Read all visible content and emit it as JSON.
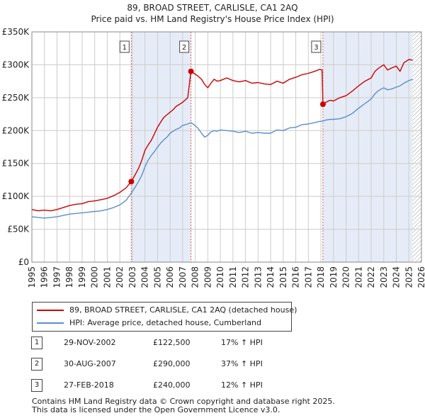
{
  "title_line1": "89, BROAD STREET, CARLISLE, CA1 2AQ",
  "title_line2": "Price paid vs. HM Land Registry's House Price Index (HPI)",
  "colors": {
    "property": "#cc0000",
    "hpi": "#5b8ecb",
    "shade": "#e6ecf7",
    "grid": "#cccccc",
    "vline": "#dd5555",
    "hatch": "#999999"
  },
  "legend": {
    "property_label": "89, BROAD STREET, CARLISLE, CA1 2AQ (detached house)",
    "hpi_label": "HPI: Average price, detached house, Cumberland"
  },
  "sales": [
    {
      "num": "1",
      "date": "29-NOV-2002",
      "price": "£122,500",
      "hpi": "17% ↑ HPI"
    },
    {
      "num": "2",
      "date": "30-AUG-2007",
      "price": "£290,000",
      "hpi": "37% ↑ HPI"
    },
    {
      "num": "3",
      "date": "27-FEB-2018",
      "price": "£240,000",
      "hpi": "12% ↑ HPI"
    }
  ],
  "footer_line1": "Contains HM Land Registry data © Crown copyright and database right 2025.",
  "footer_line2": "This data is licensed under the Open Government Licence v3.0.",
  "chart_data": {
    "type": "line",
    "title": "89, BROAD STREET, CARLISLE, CA1 2AQ",
    "subtitle": "Price paid vs. HM Land Registry's House Price Index (HPI)",
    "xlabel": "",
    "ylabel": "",
    "xlim": [
      1995,
      2026
    ],
    "ylim": [
      0,
      350000
    ],
    "yticks": [
      0,
      50000,
      100000,
      150000,
      200000,
      250000,
      300000,
      350000
    ],
    "ytick_labels": [
      "£0",
      "£50K",
      "£100K",
      "£150K",
      "£200K",
      "£250K",
      "£300K",
      "£350K"
    ],
    "xticks": [
      1995,
      1996,
      1997,
      1998,
      1999,
      2000,
      2001,
      2002,
      2003,
      2004,
      2005,
      2006,
      2007,
      2008,
      2009,
      2010,
      2011,
      2012,
      2013,
      2014,
      2015,
      2016,
      2017,
      2018,
      2019,
      2020,
      2021,
      2022,
      2023,
      2024,
      2025,
      2026
    ],
    "xtick_labels": [
      "1995",
      "1996",
      "1997",
      "1998",
      "1999",
      "2000",
      "2001",
      "2002",
      "2003",
      "2004",
      "2005",
      "2006",
      "2007",
      "2008",
      "2009",
      "2010",
      "2011",
      "2012",
      "2013",
      "2014",
      "2015",
      "2016",
      "2017",
      "2018",
      "2019",
      "2020",
      "2021",
      "2022",
      "2023",
      "2024",
      "2025",
      "2026"
    ],
    "grid": true,
    "shaded_periods": [
      [
        2002.91,
        2007.66
      ],
      [
        2018.16,
        2025.3
      ]
    ],
    "hatched_from": 2025.3,
    "series": [
      {
        "name": "89, BROAD STREET, CARLISLE, CA1 2AQ (detached house)",
        "x": [
          1995.0,
          1995.5,
          1996.0,
          1996.5,
          1997.0,
          1997.5,
          1998.0,
          1998.5,
          1999.0,
          1999.5,
          2000.0,
          2000.5,
          2001.0,
          2001.5,
          2002.0,
          2002.5,
          2002.91,
          2003.25,
          2003.5,
          2003.75,
          2004.0,
          2004.25,
          2004.5,
          2004.75,
          2005.0,
          2005.25,
          2005.5,
          2005.75,
          2006.0,
          2006.25,
          2006.5,
          2006.75,
          2007.0,
          2007.4,
          2007.66,
          2007.9,
          2008.2,
          2008.5,
          2008.75,
          2009.0,
          2009.25,
          2009.5,
          2009.75,
          2010.0,
          2010.5,
          2011.0,
          2011.5,
          2012.0,
          2012.5,
          2013.0,
          2013.5,
          2014.0,
          2014.5,
          2015.0,
          2015.5,
          2016.0,
          2016.5,
          2017.0,
          2017.5,
          2017.9,
          2018.1,
          2018.16,
          2018.4,
          2018.7,
          2019.0,
          2019.5,
          2020.0,
          2020.5,
          2021.0,
          2021.5,
          2022.0,
          2022.3,
          2022.6,
          2023.0,
          2023.3,
          2023.6,
          2024.0,
          2024.3,
          2024.6,
          2025.0,
          2025.3
        ],
        "values": [
          80000,
          78000,
          79000,
          78000,
          80000,
          83000,
          86000,
          88000,
          89000,
          92000,
          93000,
          95000,
          97000,
          101000,
          106000,
          113000,
          122500,
          134000,
          143000,
          155000,
          170000,
          178000,
          185000,
          195000,
          205000,
          213000,
          220000,
          224000,
          228000,
          232000,
          237000,
          240000,
          243000,
          250000,
          290000,
          287000,
          283000,
          278000,
          270000,
          265000,
          272000,
          278000,
          275000,
          276000,
          280000,
          276000,
          274000,
          276000,
          272000,
          273000,
          271000,
          270000,
          275000,
          272000,
          278000,
          281000,
          285000,
          287000,
          290000,
          293000,
          292000,
          240000,
          243000,
          246000,
          245000,
          250000,
          253000,
          260000,
          268000,
          275000,
          280000,
          290000,
          295000,
          300000,
          292000,
          295000,
          298000,
          290000,
          303000,
          308000,
          307000
        ]
      },
      {
        "name": "HPI: Average price, detached house, Cumberland",
        "x": [
          1995.0,
          1995.5,
          1996.0,
          1996.5,
          1997.0,
          1997.5,
          1998.0,
          1998.5,
          1999.0,
          1999.5,
          2000.0,
          2000.5,
          2001.0,
          2001.5,
          2002.0,
          2002.5,
          2002.91,
          2003.25,
          2003.5,
          2003.75,
          2004.0,
          2004.25,
          2004.5,
          2004.75,
          2005.0,
          2005.25,
          2005.5,
          2005.75,
          2006.0,
          2006.25,
          2006.5,
          2006.75,
          2007.0,
          2007.4,
          2007.66,
          2007.9,
          2008.2,
          2008.5,
          2008.75,
          2009.0,
          2009.25,
          2009.5,
          2009.75,
          2010.0,
          2010.5,
          2011.0,
          2011.5,
          2012.0,
          2012.5,
          2013.0,
          2013.5,
          2014.0,
          2014.5,
          2015.0,
          2015.5,
          2016.0,
          2016.5,
          2017.0,
          2017.5,
          2017.9,
          2018.1,
          2018.16,
          2018.4,
          2018.7,
          2019.0,
          2019.5,
          2020.0,
          2020.5,
          2021.0,
          2021.5,
          2022.0,
          2022.3,
          2022.6,
          2023.0,
          2023.3,
          2023.6,
          2024.0,
          2024.3,
          2024.6,
          2025.0,
          2025.3
        ],
        "values": [
          69000,
          68000,
          67000,
          68000,
          69000,
          71000,
          73000,
          74000,
          75000,
          76000,
          77000,
          78000,
          80000,
          83000,
          87000,
          94000,
          105000,
          115000,
          123000,
          132000,
          145000,
          155000,
          162000,
          168000,
          175000,
          181000,
          186000,
          190000,
          196000,
          199000,
          202000,
          204000,
          208000,
          210000,
          212000,
          209000,
          204000,
          196000,
          190000,
          193000,
          198000,
          200000,
          199000,
          201000,
          200000,
          199000,
          197000,
          199000,
          196000,
          197000,
          196000,
          196000,
          201000,
          200000,
          204000,
          205000,
          209000,
          210000,
          212000,
          214000,
          214000,
          214500,
          216000,
          217000,
          217000,
          218000,
          221000,
          226000,
          234000,
          241000,
          248000,
          256000,
          261000,
          265000,
          262000,
          263000,
          266000,
          268000,
          272000,
          276000,
          278000
        ]
      }
    ],
    "markers": [
      {
        "label": "1",
        "x": 2002.91,
        "y": 122500
      },
      {
        "label": "2",
        "x": 2007.66,
        "y": 290000
      },
      {
        "label": "3",
        "x": 2018.16,
        "y": 240000
      }
    ]
  }
}
